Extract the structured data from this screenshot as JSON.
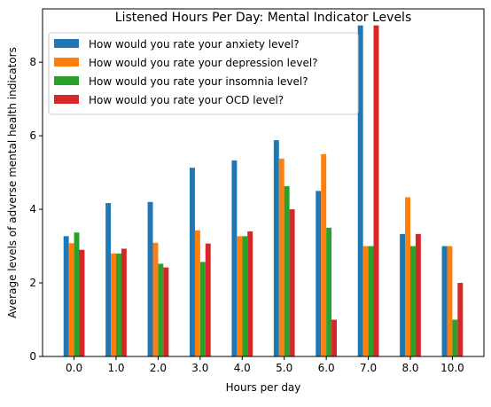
{
  "chart_data": {
    "type": "bar",
    "title": "Listened Hours Per Day: Mental Indicator Levels",
    "xlabel": "Hours per day",
    "ylabel": "Average levels of adverse mental health indicators",
    "categories": [
      "0.0",
      "1.0",
      "2.0",
      "3.0",
      "4.0",
      "5.0",
      "6.0",
      "7.0",
      "8.0",
      "10.0"
    ],
    "ylim": [
      0,
      9.45
    ],
    "yticks": [
      0,
      2,
      4,
      6,
      8
    ],
    "legend_position": "top-left",
    "grid": false,
    "series": [
      {
        "name": "How would you rate your anxiety level?",
        "color": "#1f77b4",
        "values": [
          3.27,
          4.17,
          4.2,
          5.13,
          5.33,
          5.88,
          4.5,
          9.0,
          3.33,
          3.0
        ]
      },
      {
        "name": "How would you rate your depression level?",
        "color": "#ff7f0e",
        "values": [
          3.08,
          2.8,
          3.09,
          3.43,
          3.27,
          5.38,
          5.5,
          3.0,
          4.33,
          3.0
        ]
      },
      {
        "name": "How would you rate your insomnia level?",
        "color": "#2ca02c",
        "values": [
          3.37,
          2.8,
          2.52,
          2.57,
          3.27,
          4.63,
          3.5,
          3.0,
          3.0,
          1.0
        ]
      },
      {
        "name": "How would you rate your OCD level?",
        "color": "#d62728",
        "values": [
          2.9,
          2.93,
          2.42,
          3.07,
          3.4,
          4.0,
          1.0,
          9.0,
          3.33,
          2.0
        ]
      }
    ]
  }
}
